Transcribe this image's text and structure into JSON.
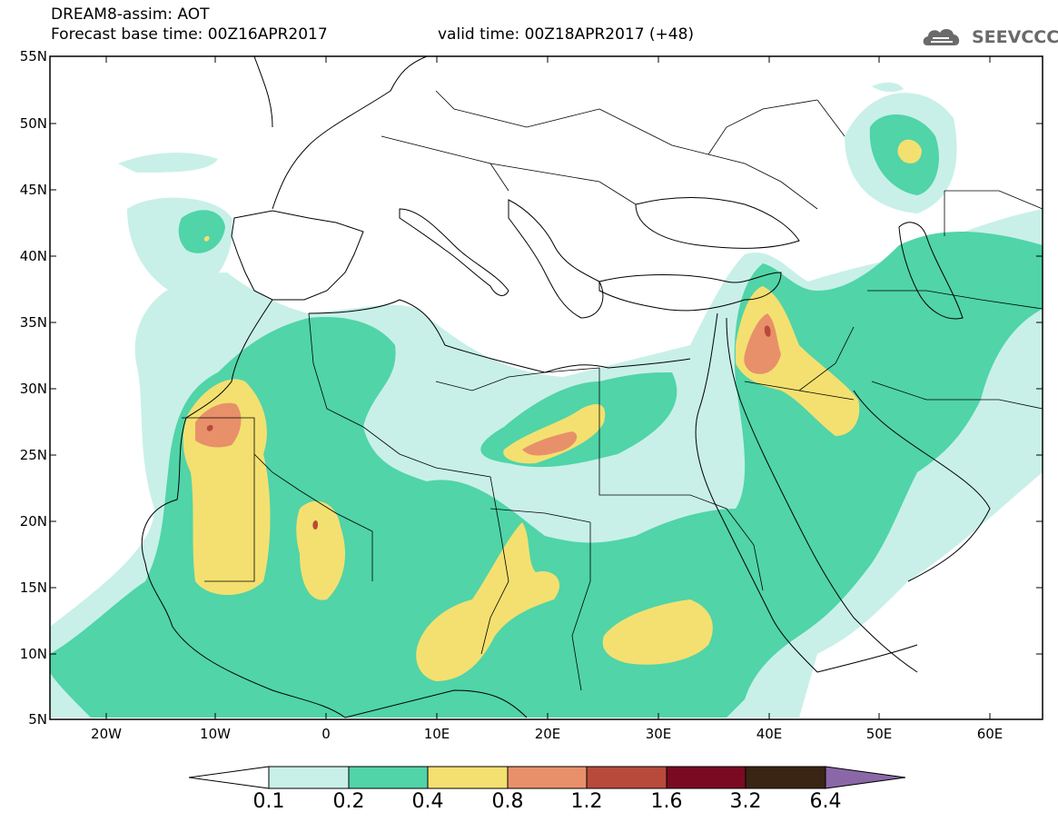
{
  "title": {
    "line1": "DREAM8-assim: AOT",
    "line2": "Forecast base time: 00Z16APR2017",
    "valid": "valid time: 00Z18APR2017 (+48)"
  },
  "logo": {
    "text": "SEEVCCC",
    "icon": "cloud-logo-icon"
  },
  "latitude_labels": [
    "55N",
    "50N",
    "45N",
    "40N",
    "35N",
    "30N",
    "25N",
    "20N",
    "15N",
    "10N",
    "5N"
  ],
  "longitude_labels": [
    "20W",
    "10W",
    "0",
    "10E",
    "20E",
    "30E",
    "40E",
    "50E",
    "60E"
  ],
  "colorbar": {
    "levels": [
      "0.1",
      "0.2",
      "0.4",
      "0.8",
      "1.2",
      "1.6",
      "3.2",
      "6.4"
    ],
    "colors": [
      "#ffffff",
      "#c8f0e8",
      "#50d4a8",
      "#f4e070",
      "#e8906a",
      "#b84a3c",
      "#7a0a22",
      "#3a2414",
      "#8a68a8"
    ]
  },
  "colors": {
    "c02": "#c8f0e8",
    "c04": "#50d4a8",
    "c08": "#f4e070",
    "c12": "#e8906a",
    "c16": "#b84a3c"
  }
}
